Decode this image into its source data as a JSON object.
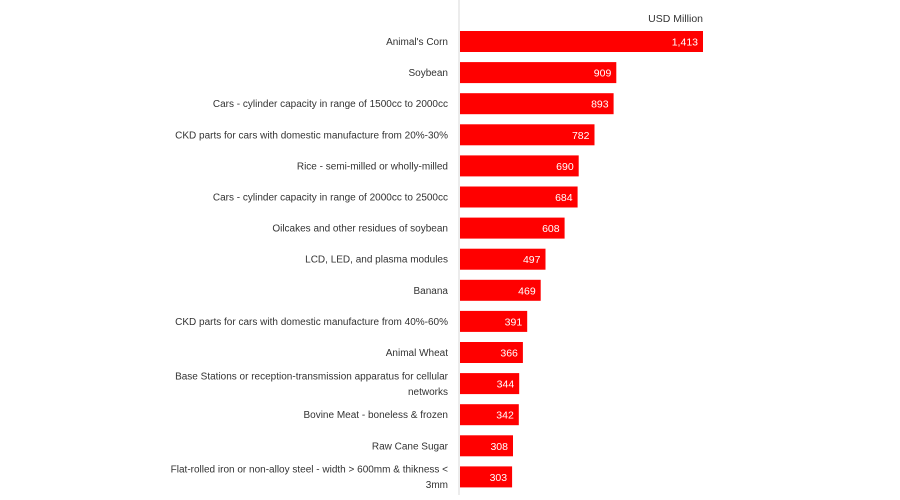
{
  "chart_data": {
    "type": "bar",
    "orientation": "horizontal",
    "unit_label": "USD Million",
    "title": "",
    "xlabel": "",
    "ylabel": "",
    "bar_color": "#ff0000",
    "value_label_color": "#ffffff",
    "axis_line": true,
    "grid": false,
    "legend": "none",
    "xlim": [
      0,
      1413
    ],
    "categories": [
      "Animal's Corn",
      "Soybean",
      "Cars - cylinder capacity in range of 1500cc to 2000cc",
      "CKD parts for cars with domestic manufacture from 20%-30%",
      "Rice - semi-milled or wholly-milled",
      "Cars - cylinder capacity in range of 2000cc to 2500cc",
      "Oilcakes and other residues of soybean",
      "LCD, LED, and plasma modules",
      "Banana",
      "CKD parts for cars with domestic manufacture from 40%-60%",
      "Animal Wheat",
      "Base Stations or reception-transmission apparatus for cellular networks",
      "Bovine Meat - boneless & frozen",
      "Raw Cane Sugar",
      "Flat-rolled iron or non-alloy steel - width > 600mm & thikness < 3mm"
    ],
    "category_label_lines": [
      [
        "Animal's Corn"
      ],
      [
        "Soybean"
      ],
      [
        "Cars - cylinder capacity in range of 1500cc to 2000cc"
      ],
      [
        "CKD parts for cars with domestic manufacture from 20%-30%"
      ],
      [
        "Rice - semi-milled or wholly-milled"
      ],
      [
        "Cars - cylinder capacity in range of 2000cc to 2500cc"
      ],
      [
        "Oilcakes and other residues of soybean"
      ],
      [
        "LCD, LED, and plasma modules"
      ],
      [
        "Banana"
      ],
      [
        "CKD parts for cars with domestic manufacture from 40%-60%"
      ],
      [
        "Animal Wheat"
      ],
      [
        "Base Stations or reception-transmission apparatus for cellular",
        "networks"
      ],
      [
        "Bovine Meat - boneless & frozen"
      ],
      [
        "Raw Cane Sugar"
      ],
      [
        "Flat-rolled iron or non-alloy steel - width > 600mm & thikness <",
        "3mm"
      ]
    ],
    "values": [
      1413,
      909,
      893,
      782,
      690,
      684,
      608,
      497,
      469,
      391,
      366,
      344,
      342,
      308,
      303
    ],
    "value_labels": [
      "1,413",
      "909",
      "893",
      "782",
      "690",
      "684",
      "608",
      "497",
      "469",
      "391",
      "366",
      "344",
      "342",
      "308",
      "303"
    ]
  }
}
